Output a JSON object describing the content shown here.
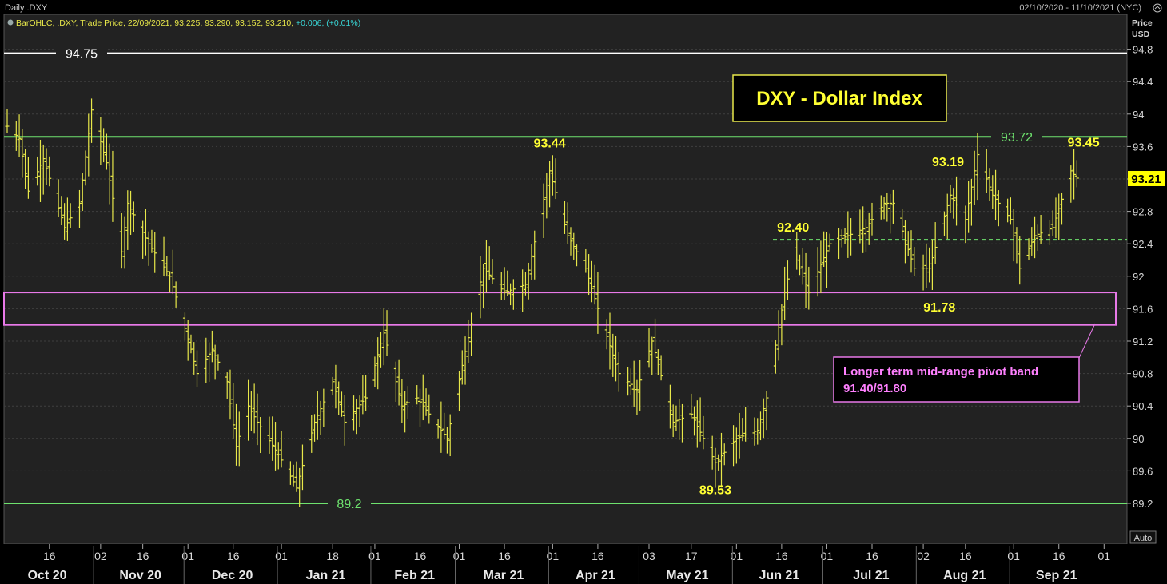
{
  "window": {
    "title": "Daily .DXY",
    "date_range": "02/10/2020 - 11/10/2021 (NYC)",
    "legend_text": "BarOHLC, .DXY, Trade Price, 22/09/2021, 93.225, 93.290, 93.152, 93.210,",
    "legend_change": "+0.006, (+0.01%)",
    "price_label": "Price",
    "currency_label": "USD",
    "auto_label": "Auto"
  },
  "colors": {
    "background": "#000000",
    "plot_bg": "#222222",
    "bars": "#e8e84a",
    "support_lines": "#6ee26e",
    "resistance_line": "#ffffff",
    "pivot_band": "#e879e8",
    "title_box_border": "#e8e84a",
    "last_price_bg": "#ffff00",
    "legend_change": "#39d6d6"
  },
  "chart_data": {
    "type": "ohlc",
    "title": "DXY - Dollar Index",
    "symbol": ".DXY",
    "ylim": [
      88.93,
      95.2
    ],
    "grid": true,
    "y_ticks": [
      "94.8",
      "94.4",
      "94",
      "93.6",
      "93.2",
      "92.8",
      "92.4",
      "92",
      "91.6",
      "91.2",
      "90.8",
      "90.4",
      "90",
      "89.6",
      "89.2"
    ],
    "last_price": "93.21",
    "x_ticks": [
      "16",
      "02",
      "16",
      "01",
      "16",
      "01",
      "18",
      "01",
      "16",
      "01",
      "16",
      "01",
      "16",
      "03",
      "17",
      "01",
      "16",
      "01",
      "16",
      "02",
      "16",
      "01",
      "16",
      "01"
    ],
    "months": [
      "Oct 20",
      "Nov 20",
      "Dec 20",
      "Jan 21",
      "Feb 21",
      "Mar 21",
      "Apr 21",
      "May 21",
      "Jun 21",
      "Jul 21",
      "Aug 21",
      "Sep 21"
    ],
    "anchors": [
      {
        "date": "2020-10-02",
        "value": 93.85
      },
      {
        "date": "2020-10-06",
        "value": 93.7
      },
      {
        "date": "2020-10-09",
        "value": 93.05
      },
      {
        "date": "2020-10-14",
        "value": 93.45
      },
      {
        "date": "2020-10-21",
        "value": 92.6
      },
      {
        "date": "2020-10-26",
        "value": 92.9
      },
      {
        "date": "2020-10-30",
        "value": 94.05
      },
      {
        "date": "2020-11-04",
        "value": 93.4
      },
      {
        "date": "2020-11-09",
        "value": 92.3
      },
      {
        "date": "2020-11-11",
        "value": 92.9
      },
      {
        "date": "2020-11-18",
        "value": 92.4
      },
      {
        "date": "2020-11-25",
        "value": 92.0
      },
      {
        "date": "2020-12-02",
        "value": 91.1
      },
      {
        "date": "2020-12-04",
        "value": 90.8
      },
      {
        "date": "2020-12-09",
        "value": 91.1
      },
      {
        "date": "2020-12-14",
        "value": 90.7
      },
      {
        "date": "2020-12-17",
        "value": 89.9
      },
      {
        "date": "2020-12-21",
        "value": 90.4
      },
      {
        "date": "2020-12-24",
        "value": 90.2
      },
      {
        "date": "2020-12-31",
        "value": 89.8
      },
      {
        "date": "2021-01-06",
        "value": 89.4
      },
      {
        "date": "2021-01-12",
        "value": 90.2
      },
      {
        "date": "2021-01-18",
        "value": 90.7
      },
      {
        "date": "2021-01-22",
        "value": 90.2
      },
      {
        "date": "2021-01-29",
        "value": 90.5
      },
      {
        "date": "2021-02-04",
        "value": 91.3
      },
      {
        "date": "2021-02-10",
        "value": 90.4
      },
      {
        "date": "2021-02-15",
        "value": 90.5
      },
      {
        "date": "2021-02-19",
        "value": 90.3
      },
      {
        "date": "2021-02-25",
        "value": 90.0
      },
      {
        "date": "2021-03-02",
        "value": 90.9
      },
      {
        "date": "2021-03-09",
        "value": 92.1
      },
      {
        "date": "2021-03-16",
        "value": 91.8
      },
      {
        "date": "2021-03-23",
        "value": 91.9
      },
      {
        "date": "2021-03-31",
        "value": 93.3
      },
      {
        "date": "2021-04-06",
        "value": 92.5
      },
      {
        "date": "2021-04-12",
        "value": 92.1
      },
      {
        "date": "2021-04-16",
        "value": 91.6
      },
      {
        "date": "2021-04-23",
        "value": 90.8
      },
      {
        "date": "2021-04-29",
        "value": 90.6
      },
      {
        "date": "2021-05-04",
        "value": 91.2
      },
      {
        "date": "2021-05-11",
        "value": 90.2
      },
      {
        "date": "2021-05-17",
        "value": 90.3
      },
      {
        "date": "2021-05-25",
        "value": 89.7
      },
      {
        "date": "2021-06-01",
        "value": 90.0
      },
      {
        "date": "2021-06-08",
        "value": 90.1
      },
      {
        "date": "2021-06-11",
        "value": 90.5
      },
      {
        "date": "2021-06-17",
        "value": 91.8
      },
      {
        "date": "2021-06-20",
        "value": 92.3
      },
      {
        "date": "2021-06-25",
        "value": 91.8
      },
      {
        "date": "2021-07-02",
        "value": 92.4
      },
      {
        "date": "2021-07-08",
        "value": 92.5
      },
      {
        "date": "2021-07-14",
        "value": 92.6
      },
      {
        "date": "2021-07-20",
        "value": 92.9
      },
      {
        "date": "2021-07-23",
        "value": 92.9
      },
      {
        "date": "2021-07-30",
        "value": 92.1
      },
      {
        "date": "2021-08-04",
        "value": 92.1
      },
      {
        "date": "2021-08-11",
        "value": 93.0
      },
      {
        "date": "2021-08-16",
        "value": 92.7
      },
      {
        "date": "2021-08-20",
        "value": 93.5
      },
      {
        "date": "2021-08-25",
        "value": 93.0
      },
      {
        "date": "2021-08-31",
        "value": 92.7
      },
      {
        "date": "2021-09-03",
        "value": 92.1
      },
      {
        "date": "2021-09-08",
        "value": 92.5
      },
      {
        "date": "2021-09-14",
        "value": 92.6
      },
      {
        "date": "2021-09-20",
        "value": 93.3
      },
      {
        "date": "2021-09-22",
        "value": 93.21
      }
    ],
    "levels": [
      {
        "value": 94.75,
        "label": "94.75",
        "style": "solid",
        "color": "#ffffff"
      },
      {
        "value": 93.72,
        "label": "93.72",
        "style": "solid",
        "color": "#6ee26e"
      },
      {
        "value": 89.2,
        "label": "89.2",
        "style": "solid",
        "color": "#6ee26e"
      },
      {
        "value": 92.45,
        "label": "",
        "style": "dashed",
        "color": "#6ee26e"
      }
    ],
    "pivot_band": {
      "low": 91.4,
      "high": 91.8,
      "color": "#e879e8"
    },
    "annotations": [
      {
        "text": "93.44",
        "date": "2021-03-31",
        "value": 93.44
      },
      {
        "text": "92.40",
        "date": "2021-06-19",
        "value": 92.4
      },
      {
        "text": "93.19",
        "date": "2021-08-11",
        "value": 93.19
      },
      {
        "text": "93.45",
        "date": "2021-09-21",
        "value": 93.45
      },
      {
        "text": "91.78",
        "date": "2021-08-01",
        "value": 91.78
      },
      {
        "text": "89.53",
        "date": "2021-05-25",
        "value": 89.53
      }
    ],
    "pivot_note_line1": "Longer term mid-range pivot band",
    "pivot_note_line2": "91.40/91.80"
  }
}
